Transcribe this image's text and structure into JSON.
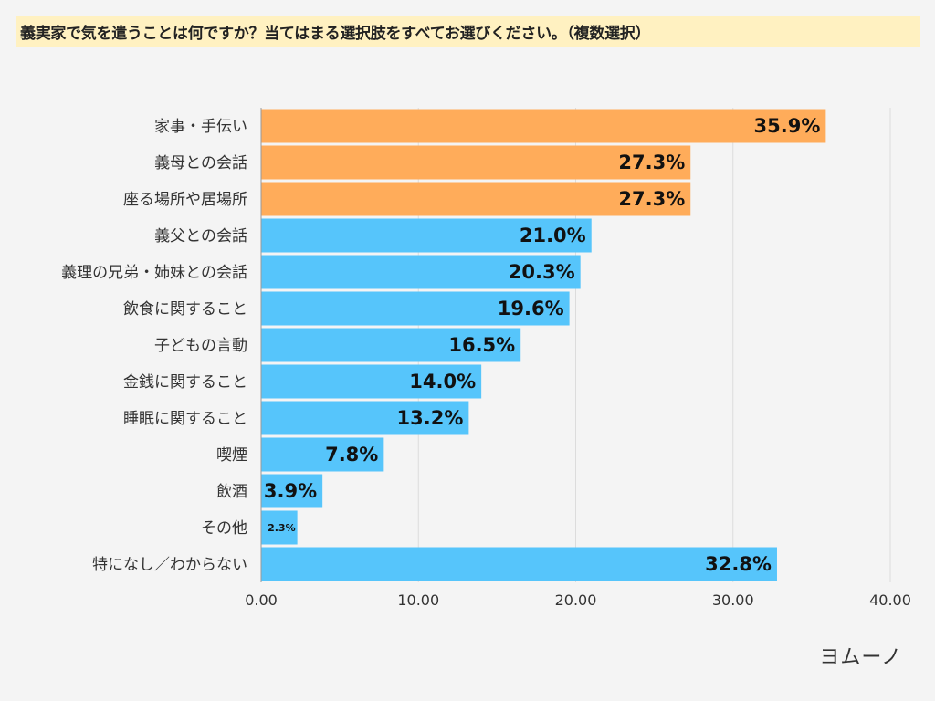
{
  "title": "義実家で気を遣うことは何ですか？当てはまる選択肢をすべてお選びください。（複数選択）",
  "logo": "ヨムーノ",
  "colors": {
    "highlight": "#ffac5a",
    "normal": "#56c5fb",
    "grid": "#dcdcdc",
    "axis": "#999999"
  },
  "chart_data": {
    "type": "bar",
    "orientation": "horizontal",
    "title": "義実家で気を遣うことは何ですか？当てはまる選択肢をすべてお選びください。（複数選択）",
    "categories": [
      "家事・手伝い",
      "義母との会話",
      "座る場所や居場所",
      "義父との会話",
      "義理の兄弟・姉妹との会話",
      "飲食に関すること",
      "子どもの言動",
      "金銭に関すること",
      "睡眠に関すること",
      "喫煙",
      "飲酒",
      "その他",
      "特になし／わからない"
    ],
    "values": [
      35.9,
      27.3,
      27.3,
      21.0,
      20.3,
      19.6,
      16.5,
      14.0,
      13.2,
      7.8,
      3.9,
      2.3,
      32.8
    ],
    "value_labels": [
      "35.9%",
      "27.3%",
      "27.3%",
      "21.0%",
      "20.3%",
      "19.6%",
      "16.5%",
      "14.0%",
      "13.2%",
      "7.8%",
      "3.9%",
      "2.3%",
      "32.8%"
    ],
    "highlight_count": 3,
    "xlim": [
      0,
      40
    ],
    "ticks": [
      0,
      10,
      20,
      30,
      40
    ],
    "tick_labels": [
      "0.00",
      "10.00",
      "20.00",
      "30.00",
      "40.00"
    ],
    "grid": true
  }
}
